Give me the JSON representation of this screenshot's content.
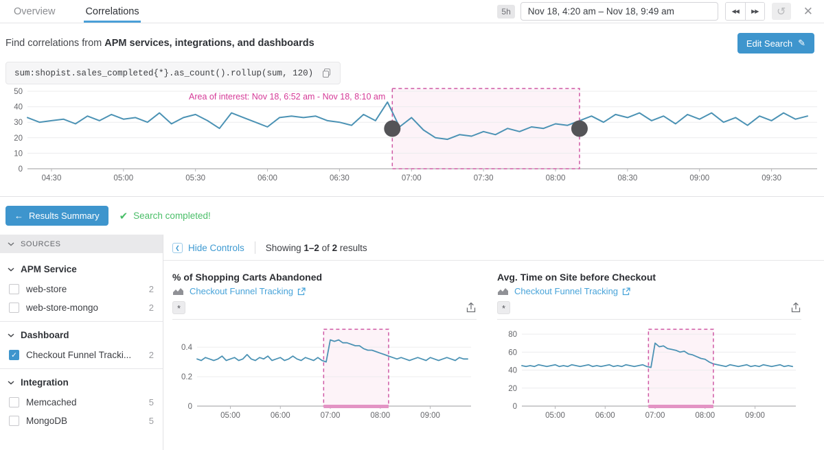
{
  "colors": {
    "accent_blue": "#3e95cd",
    "link_blue": "#47a3d9",
    "tab_underline": "#4a9fd8",
    "line_blue": "#4b92b4",
    "pink_border": "#cf58a4",
    "pink_text": "#d53a97",
    "pink_fill": "#fdf3f8",
    "pink_bar": "#e393c4",
    "handle_gray": "#545457",
    "green": "#4abe68",
    "axis_text": "#65666a",
    "grid": "#ececee"
  },
  "icons": {
    "back": "◀◀",
    "forward": "▶▶",
    "refresh": "↺",
    "close": "✕",
    "pencil": "✎",
    "left_arrow": "←",
    "check": "✔",
    "checkbox_check": "✓",
    "hide_chevron": "❮"
  },
  "tabs": {
    "overview": "Overview",
    "correlations": "Correlations"
  },
  "timebar": {
    "range_badge": "5h",
    "range_text": "Nov 18, 4:20 am – Nov 18, 9:49 am"
  },
  "search_header": {
    "prefix": "Find correlations from ",
    "bold": "APM services, integrations, and dashboards",
    "edit_button": "Edit Search"
  },
  "query": {
    "text": "sum:shopist.sales_completed{*}.as_count().rollup(sum, 120)"
  },
  "results_bar": {
    "back_button": "Results Summary",
    "status": "Search completed!"
  },
  "sidebar": {
    "header": "SOURCES",
    "sections": [
      {
        "label": "APM Service",
        "items": [
          {
            "label": "web-store",
            "count": "2",
            "checked": false
          },
          {
            "label": "web-store-mongo",
            "count": "2",
            "checked": false
          }
        ]
      },
      {
        "label": "Dashboard",
        "items": [
          {
            "label": "Checkout Funnel Tracki...",
            "count": "2",
            "checked": true
          }
        ]
      },
      {
        "label": "Integration",
        "items": [
          {
            "label": "Memcached",
            "count": "5",
            "checked": false
          },
          {
            "label": "MongoDB",
            "count": "5",
            "checked": false
          }
        ]
      }
    ]
  },
  "controls": {
    "hide": "Hide Controls",
    "showing": {
      "prefix": "Showing ",
      "range": "1–2",
      "of": " of ",
      "total": "2",
      "suffix": " results"
    }
  },
  "panels": [
    {
      "title": "% of Shopping Carts Abandoned",
      "source_link": "Checkout Funnel Tracking",
      "badge": "*"
    },
    {
      "title": "Avg. Time on Site before Checkout",
      "source_link": "Checkout Funnel Tracking",
      "badge": "*"
    }
  ],
  "chart_data": [
    {
      "type": "line",
      "title": "sum:shopist.sales_completed{*}.as_count().rollup(sum, 120)",
      "x_range": [
        260,
        589
      ],
      "x_unit": "minutes_since_midnight",
      "x_start": 260,
      "x_step": 5,
      "values": [
        33,
        30,
        31,
        32,
        29,
        34,
        31,
        35,
        32,
        33,
        30,
        36,
        29,
        33,
        35,
        31,
        26,
        36,
        33,
        30,
        27,
        33,
        34,
        33,
        34,
        31,
        30,
        28,
        35,
        31,
        43,
        27,
        33,
        25,
        20,
        19,
        22,
        21,
        24,
        22,
        26,
        24,
        27,
        26,
        29,
        28,
        31,
        34,
        30,
        35,
        33,
        36,
        31,
        34,
        29,
        35,
        32,
        36,
        30,
        33,
        28,
        34,
        31,
        36,
        32,
        34
      ],
      "ylim": [
        0,
        50
      ],
      "yticks": [
        {
          "v": 0,
          "label": "0"
        },
        {
          "v": 10,
          "label": "10"
        },
        {
          "v": 20,
          "label": "20"
        },
        {
          "v": 30,
          "label": "30"
        },
        {
          "v": 40,
          "label": "40"
        },
        {
          "v": 50,
          "label": "50"
        }
      ],
      "xticks": [
        {
          "t": 270,
          "label": "04:30"
        },
        {
          "t": 300,
          "label": "05:00"
        },
        {
          "t": 330,
          "label": "05:30"
        },
        {
          "t": 360,
          "label": "06:00"
        },
        {
          "t": 390,
          "label": "06:30"
        },
        {
          "t": 420,
          "label": "07:00"
        },
        {
          "t": 450,
          "label": "07:30"
        },
        {
          "t": 480,
          "label": "08:00"
        },
        {
          "t": 510,
          "label": "08:30"
        },
        {
          "t": 540,
          "label": "09:00"
        },
        {
          "t": 570,
          "label": "09:30"
        }
      ],
      "region": {
        "t1": 412,
        "t2": 490,
        "label": "Area of interest: Nov 18, 6:52 am - Nov 18, 8:10 am",
        "handles": true,
        "bottom_bar": false
      },
      "grid": true,
      "legend": "none"
    },
    {
      "type": "line",
      "title": "% of Shopping Carts Abandoned",
      "x_range": [
        260,
        589
      ],
      "x_unit": "minutes_since_midnight",
      "x_start": 260,
      "x_step": 5,
      "values": [
        0.32,
        0.31,
        0.33,
        0.32,
        0.31,
        0.32,
        0.34,
        0.31,
        0.32,
        0.33,
        0.31,
        0.32,
        0.35,
        0.32,
        0.31,
        0.33,
        0.32,
        0.34,
        0.31,
        0.32,
        0.33,
        0.31,
        0.32,
        0.34,
        0.32,
        0.31,
        0.33,
        0.32,
        0.31,
        0.33,
        0.31,
        0.3,
        0.45,
        0.44,
        0.45,
        0.43,
        0.43,
        0.42,
        0.41,
        0.41,
        0.39,
        0.38,
        0.38,
        0.37,
        0.36,
        0.35,
        0.34,
        0.33,
        0.32,
        0.33,
        0.32,
        0.31,
        0.32,
        0.33,
        0.32,
        0.31,
        0.33,
        0.32,
        0.31,
        0.32,
        0.33,
        0.32,
        0.31,
        0.33,
        0.32,
        0.32
      ],
      "ylim": [
        0,
        0.55
      ],
      "yticks": [
        {
          "v": 0,
          "label": "0"
        },
        {
          "v": 0.2,
          "label": "0.2"
        },
        {
          "v": 0.4,
          "label": "0.4"
        }
      ],
      "xticks": [
        {
          "t": 300,
          "label": "05:00"
        },
        {
          "t": 360,
          "label": "06:00"
        },
        {
          "t": 420,
          "label": "07:00"
        },
        {
          "t": 480,
          "label": "08:00"
        },
        {
          "t": 540,
          "label": "09:00"
        }
      ],
      "region": {
        "t1": 412,
        "t2": 490,
        "handles": false,
        "bottom_bar": true
      },
      "grid": true,
      "legend": "none"
    },
    {
      "type": "line",
      "title": "Avg. Time on Site before Checkout",
      "x_range": [
        260,
        589
      ],
      "x_unit": "minutes_since_midnight",
      "x_start": 260,
      "x_step": 5,
      "values": [
        45,
        44,
        45,
        44,
        46,
        45,
        44,
        45,
        46,
        44,
        45,
        44,
        46,
        45,
        44,
        45,
        46,
        44,
        45,
        44,
        45,
        46,
        44,
        45,
        44,
        46,
        45,
        44,
        45,
        46,
        44,
        43,
        70,
        66,
        67,
        64,
        63,
        62,
        60,
        61,
        58,
        57,
        55,
        53,
        52,
        49,
        47,
        46,
        45,
        44,
        46,
        45,
        44,
        45,
        46,
        44,
        45,
        44,
        46,
        45,
        44,
        45,
        46,
        44,
        45,
        44
      ],
      "ylim": [
        0,
        90
      ],
      "yticks": [
        {
          "v": 0,
          "label": "0"
        },
        {
          "v": 20,
          "label": "20"
        },
        {
          "v": 40,
          "label": "40"
        },
        {
          "v": 60,
          "label": "60"
        },
        {
          "v": 80,
          "label": "80"
        }
      ],
      "xticks": [
        {
          "t": 300,
          "label": "05:00"
        },
        {
          "t": 360,
          "label": "06:00"
        },
        {
          "t": 420,
          "label": "07:00"
        },
        {
          "t": 480,
          "label": "08:00"
        },
        {
          "t": 540,
          "label": "09:00"
        }
      ],
      "region": {
        "t1": 412,
        "t2": 490,
        "handles": false,
        "bottom_bar": true
      },
      "grid": true,
      "legend": "none"
    }
  ]
}
